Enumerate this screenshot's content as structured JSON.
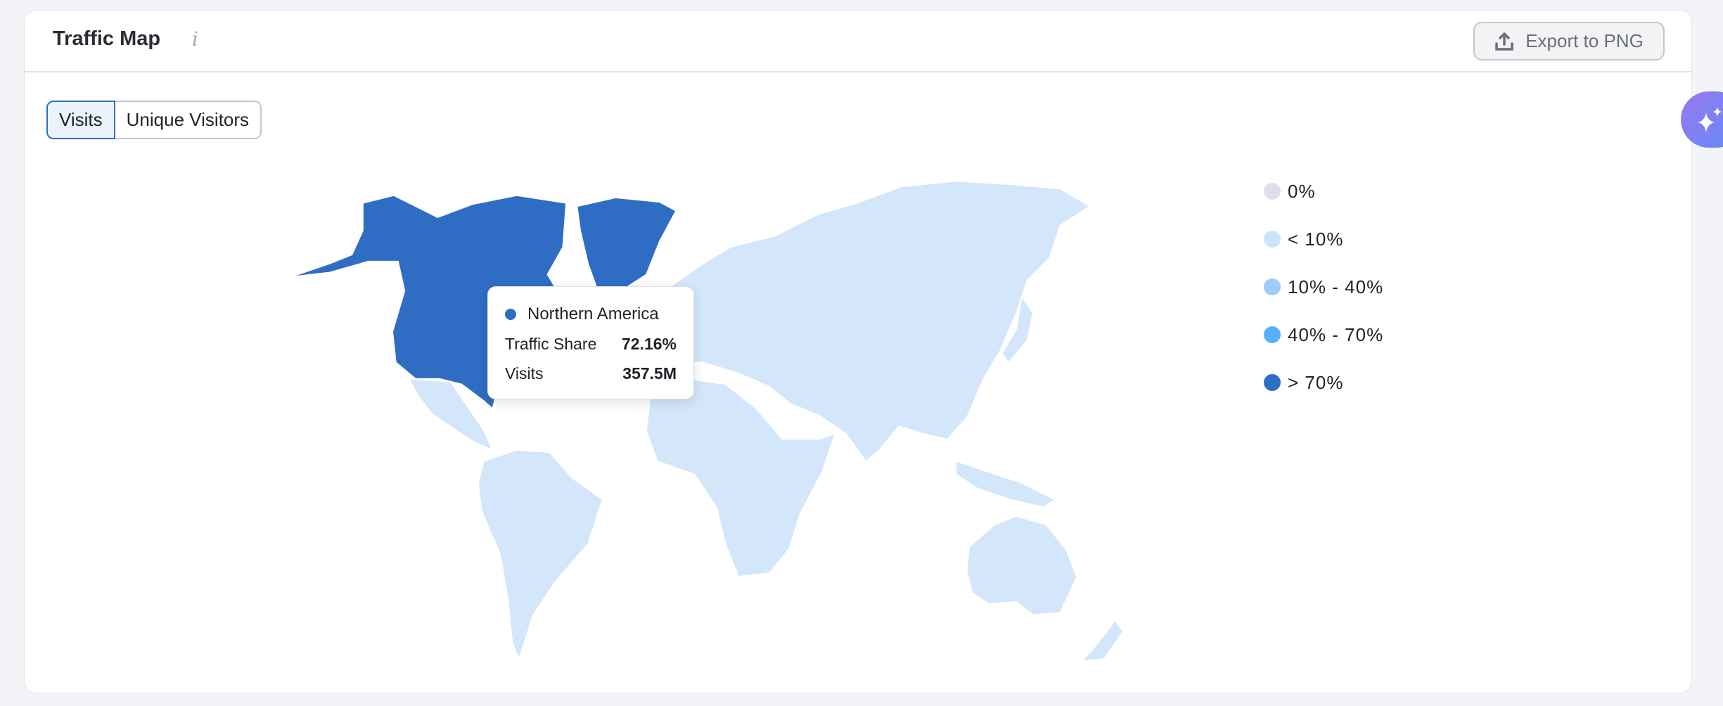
{
  "header": {
    "title": "Traffic Map",
    "info_icon": "info-icon",
    "export_label": "Export to PNG",
    "export_icon": "upload-icon"
  },
  "tabs": [
    {
      "label": "Visits",
      "active": true
    },
    {
      "label": "Unique Visitors",
      "active": false
    }
  ],
  "colors": {
    "zero": "#DFE0E7",
    "lt10": "#CCE4FB",
    "r10_40": "#9FCCFA",
    "r40_70": "#58B0FA",
    "gt70": "#2F6DC5",
    "accent": "#2F6DC5"
  },
  "legend": [
    {
      "label": "0%",
      "color": "#DFE0E7"
    },
    {
      "label": "< 10%",
      "color": "#CCE4FB"
    },
    {
      "label": "10% - 40%",
      "color": "#9FCCFA"
    },
    {
      "label": "40% - 70%",
      "color": "#58B0FA"
    },
    {
      "label": "> 70%",
      "color": "#2F6DC5"
    }
  ],
  "tooltip": {
    "region": "Northern America",
    "share_label": "Traffic Share",
    "share_value": "72.16%",
    "visits_label": "Visits",
    "visits_value": "357.5M"
  },
  "ai_button": {
    "icon": "sparkle-icon"
  }
}
